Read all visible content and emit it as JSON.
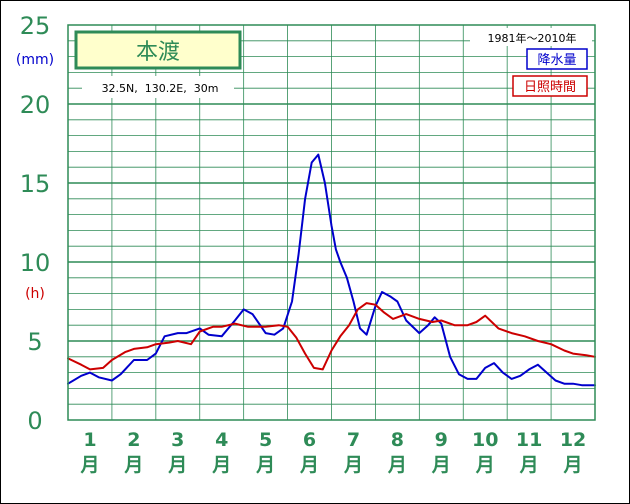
{
  "chart_data": {
    "type": "line",
    "title": "本渡",
    "subtitle": "32.5N,  130.2E,  30m",
    "period": "1981年〜2010年",
    "y_unit_precip": "(mm)",
    "y_unit_sun": "(h)",
    "ylim": [
      0,
      25
    ],
    "yticks": [
      0,
      5,
      10,
      15,
      20,
      25
    ],
    "xlim": [
      0.5,
      12.5
    ],
    "categories": [
      "1",
      "2",
      "3",
      "4",
      "5",
      "6",
      "7",
      "8",
      "9",
      "10",
      "11",
      "12"
    ],
    "month_suffix": "月",
    "grid": true,
    "legend_position": "top-right",
    "series": [
      {
        "name": "降水量",
        "color": "#0000cc",
        "x": [
          0.5,
          0.8,
          1.0,
          1.2,
          1.5,
          1.7,
          2.0,
          2.3,
          2.5,
          2.7,
          3.0,
          3.2,
          3.5,
          3.7,
          4.0,
          4.3,
          4.5,
          4.7,
          5.0,
          5.2,
          5.4,
          5.6,
          5.75,
          5.9,
          6.05,
          6.2,
          6.35,
          6.5,
          6.6,
          6.7,
          6.85,
          7.0,
          7.15,
          7.3,
          7.5,
          7.65,
          7.85,
          8.0,
          8.2,
          8.5,
          8.7,
          8.85,
          9.0,
          9.2,
          9.4,
          9.6,
          9.8,
          10.0,
          10.2,
          10.4,
          10.6,
          10.8,
          11.0,
          11.2,
          11.4,
          11.6,
          11.8,
          12.0,
          12.2,
          12.5
        ],
        "y": [
          2.3,
          2.8,
          3.0,
          2.7,
          2.5,
          2.9,
          3.8,
          3.8,
          4.2,
          5.3,
          5.5,
          5.5,
          5.8,
          5.4,
          5.3,
          6.3,
          7.0,
          6.7,
          5.5,
          5.4,
          5.8,
          7.5,
          10.5,
          14.0,
          16.3,
          16.8,
          15.0,
          12.3,
          10.8,
          10.0,
          9.0,
          7.5,
          5.8,
          5.4,
          7.2,
          8.1,
          7.8,
          7.5,
          6.3,
          5.5,
          6.0,
          6.5,
          6.1,
          4.0,
          2.9,
          2.6,
          2.6,
          3.3,
          3.6,
          3.0,
          2.6,
          2.8,
          3.2,
          3.5,
          3.0,
          2.5,
          2.3,
          2.3,
          2.2,
          2.2
        ]
      },
      {
        "name": "日照時間",
        "color": "#cc0000",
        "x": [
          0.5,
          0.8,
          1.0,
          1.3,
          1.5,
          1.8,
          2.0,
          2.3,
          2.5,
          2.8,
          3.0,
          3.3,
          3.5,
          3.8,
          4.0,
          4.3,
          4.6,
          5.0,
          5.3,
          5.5,
          5.7,
          5.9,
          6.1,
          6.3,
          6.5,
          6.7,
          6.9,
          7.1,
          7.3,
          7.5,
          7.7,
          7.9,
          8.2,
          8.5,
          8.8,
          9.0,
          9.3,
          9.6,
          9.8,
          10.0,
          10.3,
          10.6,
          10.9,
          11.2,
          11.5,
          11.8,
          12.0,
          12.3,
          12.5
        ],
        "y": [
          3.9,
          3.5,
          3.2,
          3.3,
          3.8,
          4.3,
          4.5,
          4.6,
          4.8,
          4.9,
          5.0,
          4.8,
          5.6,
          5.9,
          5.9,
          6.1,
          5.9,
          5.9,
          6.0,
          5.9,
          5.2,
          4.2,
          3.3,
          3.2,
          4.4,
          5.3,
          6.0,
          7.0,
          7.4,
          7.3,
          6.8,
          6.4,
          6.7,
          6.4,
          6.2,
          6.3,
          6.0,
          6.0,
          6.2,
          6.6,
          5.8,
          5.5,
          5.3,
          5.0,
          4.8,
          4.4,
          4.2,
          4.1,
          4.0
        ]
      }
    ]
  }
}
